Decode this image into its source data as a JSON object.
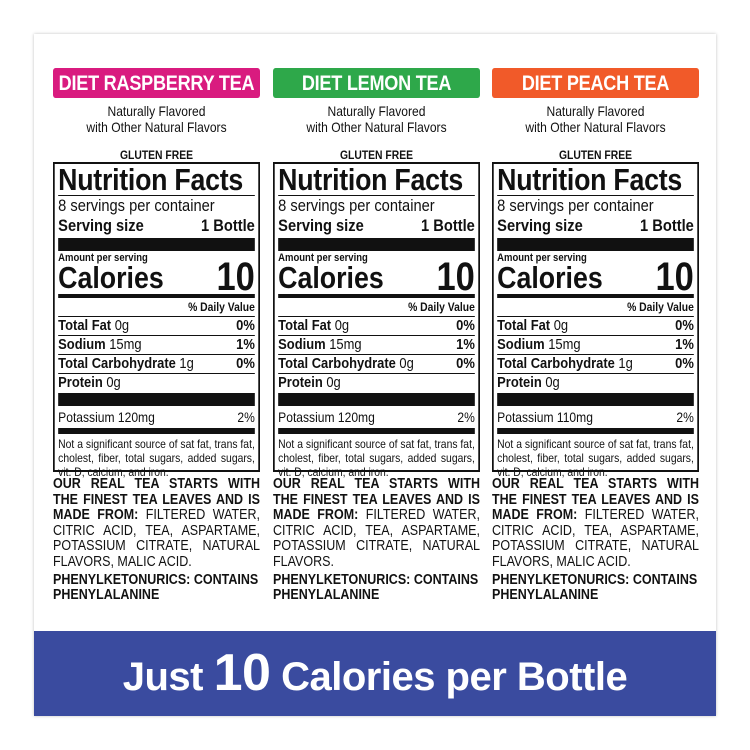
{
  "panels": [
    {
      "title": "DIET RASPBERRY TEA",
      "color": "#d91b7f",
      "sub1": "Naturally Flavored",
      "sub2": "with Other Natural Flavors",
      "gluten": "GLUTEN FREE",
      "nf_title": "Nutrition Facts",
      "servings": "8 servings per container",
      "serving_size_label": "Serving size",
      "serving_size": "1 Bottle",
      "amount_per_serving": "Amount per serving",
      "calories_label": "Calories",
      "calories": "10",
      "daily_value": "% Daily Value",
      "fat_label": "Total Fat",
      "fat": "0g",
      "fat_dv": "0%",
      "sodium_label": "Sodium",
      "sodium": "15mg",
      "sodium_dv": "1%",
      "carb_label": "Total Carbohydrate",
      "carb": "1g",
      "carb_dv": "0%",
      "protein_label": "Protein",
      "protein": "0g",
      "potassium": "Potassium 120mg",
      "potassium_dv": "2%",
      "footnote": "Not a significant source of sat fat, trans fat, cholest, fiber, total sugars, added sugars, vit. D, calcium, and iron.",
      "ingredients_bold": "OUR REAL TEA STARTS WITH THE FINEST TEA LEAVES AND IS MADE FROM:",
      "ingredients": "FILTERED WATER, CITRIC ACID, TEA, ASPARTAME, POTASSIUM CITRATE, NATURAL FLAVORS, MALIC ACID.",
      "pku": "PHENYLKETONURICS: CONTAINS PHENYLALANINE"
    },
    {
      "title": "DIET LEMON TEA",
      "color": "#2ea84a",
      "sub1": "Naturally Flavored",
      "sub2": "with Other Natural Flavors",
      "gluten": "GLUTEN FREE",
      "nf_title": "Nutrition Facts",
      "servings": "8 servings per container",
      "serving_size_label": "Serving size",
      "serving_size": "1 Bottle",
      "amount_per_serving": "Amount per serving",
      "calories_label": "Calories",
      "calories": "10",
      "daily_value": "% Daily Value",
      "fat_label": "Total Fat",
      "fat": "0g",
      "fat_dv": "0%",
      "sodium_label": "Sodium",
      "sodium": "15mg",
      "sodium_dv": "1%",
      "carb_label": "Total Carbohydrate",
      "carb": "0g",
      "carb_dv": "0%",
      "protein_label": "Protein",
      "protein": "0g",
      "potassium": "Potassium 120mg",
      "potassium_dv": "2%",
      "footnote": "Not a significant source of sat fat, trans fat, cholest, fiber, total sugars, added sugars, vit. D, calcium, and iron.",
      "ingredients_bold": "OUR REAL TEA STARTS WITH THE FINEST TEA LEAVES AND IS MADE FROM:",
      "ingredients": "FILTERED WATER, CITRIC ACID, TEA, ASPARTAME, POTASSIUM CITRATE, NATURAL FLAVORS.",
      "pku": "PHENYLKETONURICS: CONTAINS PHENYLALANINE"
    },
    {
      "title": "DIET PEACH TEA",
      "color": "#f15a29",
      "sub1": "Naturally Flavored",
      "sub2": "with Other Natural Flavors",
      "gluten": "GLUTEN FREE",
      "nf_title": "Nutrition Facts",
      "servings": "8 servings per container",
      "serving_size_label": "Serving size",
      "serving_size": "1 Bottle",
      "amount_per_serving": "Amount per serving",
      "calories_label": "Calories",
      "calories": "10",
      "daily_value": "% Daily Value",
      "fat_label": "Total Fat",
      "fat": "0g",
      "fat_dv": "0%",
      "sodium_label": "Sodium",
      "sodium": "15mg",
      "sodium_dv": "1%",
      "carb_label": "Total Carbohydrate",
      "carb": "1g",
      "carb_dv": "0%",
      "protein_label": "Protein",
      "protein": "0g",
      "potassium": "Potassium 110mg",
      "potassium_dv": "2%",
      "footnote": "Not a significant source of sat fat, trans fat, cholest, fiber, total sugars, added sugars, vit. D, calcium, and iron.",
      "ingredients_bold": "OUR REAL TEA STARTS WITH THE FINEST TEA LEAVES AND IS MADE FROM:",
      "ingredients": "FILTERED WATER, CITRIC ACID, TEA, ASPARTAME, POTASSIUM CITRATE, NATURAL FLAVORS, MALIC ACID.",
      "pku": "PHENYLKETONURICS: CONTAINS PHENYLALANINE"
    }
  ],
  "banner": {
    "pre": "Just",
    "number": "10",
    "post": "Calories per Bottle",
    "color": "#3a4b9f"
  }
}
